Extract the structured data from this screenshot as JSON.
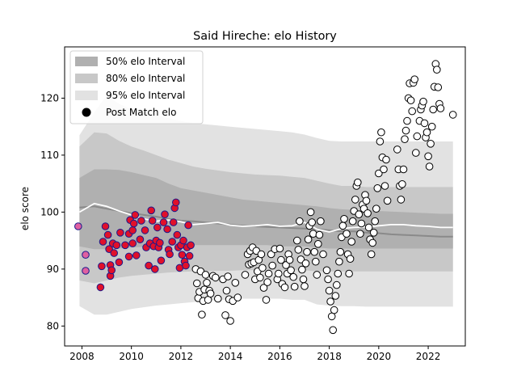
{
  "chart_data": {
    "type": "scatter",
    "title": "Said Hireche: elo History",
    "xlabel": "",
    "ylabel": "elo score",
    "xlim": [
      2007.3,
      2023.5
    ],
    "ylim": [
      76.5,
      129.0
    ],
    "xticks": [
      2008,
      2010,
      2012,
      2014,
      2016,
      2018,
      2020,
      2022
    ],
    "yticks": [
      80,
      90,
      100,
      110,
      120
    ],
    "grid": false,
    "legend_position": "upper-left",
    "legend": [
      {
        "label": "50% elo Interval",
        "color": "#b0b0b0",
        "kind": "patch"
      },
      {
        "label": "80% elo Interval",
        "color": "#c8c8c8",
        "kind": "patch"
      },
      {
        "label": "95% elo Interval",
        "color": "#e2e2e2",
        "kind": "patch"
      },
      {
        "label": "Post Match elo",
        "color": "#000000",
        "kind": "marker"
      }
    ],
    "bands": {
      "x": [
        2007.9,
        2008.5,
        2009.0,
        2009.5,
        2010.0,
        2010.5,
        2011.0,
        2011.5,
        2012.0,
        2012.5,
        2013.0,
        2013.5,
        2014.0,
        2014.5,
        2015.0,
        2015.5,
        2016.0,
        2016.5,
        2017.0,
        2017.5,
        2018.0,
        2018.5,
        2019.0,
        2019.5,
        2020.0,
        2020.5,
        2021.0,
        2021.5,
        2022.0,
        2022.5,
        2023.0
      ],
      "median": [
        100.8,
        101.0,
        100.6,
        100.2,
        99.8,
        99.5,
        99.2,
        98.8,
        98.5,
        98.4,
        98.2,
        98.0,
        97.8,
        97.6,
        97.5,
        97.4,
        97.3,
        97.2,
        97.1,
        97.0,
        96.8,
        96.6,
        96.6,
        96.4,
        96.3,
        96.1,
        96.0,
        95.9,
        95.8,
        95.7,
        95.7
      ],
      "line": [
        100.0,
        101.5,
        101.0,
        100.2,
        99.5,
        98.8,
        98.4,
        98.6,
        98.3,
        97.8,
        98.0,
        98.2,
        97.7,
        97.5,
        97.6,
        97.8,
        97.5,
        97.6,
        98.2,
        97.0,
        96.5,
        97.1,
        97.3,
        97.4,
        97.6,
        97.8,
        97.8,
        97.6,
        97.5,
        97.3,
        97.3
      ],
      "b50_lo": [
        94.0,
        93.5,
        93.5,
        93.6,
        93.8,
        93.9,
        94.0,
        94.1,
        94.2,
        94.2,
        94.2,
        94.2,
        94.2,
        94.2,
        94.2,
        94.2,
        94.0,
        94.0,
        94.0,
        93.8,
        93.6,
        93.6,
        93.6,
        93.6,
        93.6,
        93.6,
        93.6,
        93.6,
        93.6,
        93.6,
        93.6
      ],
      "b50_hi": [
        106.0,
        107.5,
        107.5,
        107.4,
        107.0,
        106.5,
        106.0,
        105.0,
        104.2,
        103.8,
        103.4,
        103.0,
        102.6,
        102.2,
        102.0,
        101.8,
        101.6,
        101.4,
        101.2,
        101.0,
        100.7,
        100.5,
        100.4,
        100.3,
        100.2,
        100.1,
        100.0,
        99.9,
        99.8,
        99.7,
        99.7
      ],
      "b80_lo": [
        88.0,
        87.5,
        88.0,
        88.5,
        88.8,
        89.0,
        89.2,
        89.4,
        89.5,
        89.6,
        89.6,
        89.7,
        89.7,
        89.8,
        89.8,
        89.8,
        89.8,
        89.8,
        89.8,
        89.6,
        89.6,
        89.6,
        89.6,
        89.6,
        89.6,
        89.6,
        89.6,
        89.6,
        89.6,
        89.6,
        89.6
      ],
      "b80_hi": [
        111.5,
        114.0,
        113.8,
        112.5,
        111.5,
        110.8,
        110.0,
        109.2,
        108.6,
        108.0,
        107.6,
        107.3,
        107.0,
        106.8,
        106.6,
        106.5,
        106.4,
        106.2,
        106.0,
        105.5,
        105.0,
        104.6,
        104.6,
        104.4,
        104.4,
        104.4,
        104.4,
        104.4,
        104.4,
        104.4,
        104.4
      ],
      "b95_lo": [
        83.5,
        82.0,
        82.0,
        82.5,
        83.0,
        83.3,
        83.6,
        83.8,
        84.0,
        84.2,
        84.4,
        84.6,
        84.6,
        84.8,
        84.8,
        84.8,
        84.8,
        84.6,
        84.6,
        83.8,
        83.6,
        83.5,
        83.5,
        83.4,
        83.4,
        83.4,
        83.4,
        83.4,
        83.4,
        83.4,
        83.4
      ],
      "b95_hi": [
        113.5,
        117.5,
        120.5,
        119.0,
        118.0,
        117.5,
        117.0,
        116.5,
        116.0,
        115.6,
        115.4,
        115.2,
        115.0,
        114.8,
        114.6,
        114.4,
        114.2,
        114.0,
        113.6,
        113.0,
        112.5,
        112.4,
        112.4,
        112.4,
        112.4,
        112.4,
        112.4,
        112.4,
        112.4,
        112.4,
        112.4
      ]
    },
    "series": [
      {
        "marker_face": "#e0102a",
        "marker_edge": "#1a1a8c",
        "points": [
          [
            2008.75,
            86.8
          ],
          [
            2008.8,
            90.5
          ],
          [
            2008.85,
            94.8
          ],
          [
            2008.95,
            97.5
          ],
          [
            2009.05,
            96.0
          ],
          [
            2009.1,
            93.5
          ],
          [
            2009.15,
            90.7
          ],
          [
            2009.15,
            88.8
          ],
          [
            2009.2,
            89.8
          ],
          [
            2009.25,
            94.5
          ],
          [
            2009.3,
            92.8
          ],
          [
            2009.4,
            94.2
          ],
          [
            2009.5,
            91.2
          ],
          [
            2009.55,
            96.4
          ],
          [
            2009.75,
            94.2
          ],
          [
            2009.9,
            92.2
          ],
          [
            2009.9,
            96.2
          ],
          [
            2009.95,
            98.6
          ],
          [
            2010.05,
            94.5
          ],
          [
            2010.05,
            96.8
          ],
          [
            2010.1,
            98.0
          ],
          [
            2010.15,
            99.5
          ],
          [
            2010.2,
            92.4
          ],
          [
            2010.35,
            95.2
          ],
          [
            2010.4,
            98.5
          ],
          [
            2010.55,
            96.8
          ],
          [
            2010.6,
            93.8
          ],
          [
            2010.7,
            90.6
          ],
          [
            2010.75,
            94.5
          ],
          [
            2010.8,
            100.3
          ],
          [
            2010.85,
            98.5
          ],
          [
            2010.9,
            94.0
          ],
          [
            2010.95,
            90.0
          ],
          [
            2011.0,
            95.0
          ],
          [
            2011.05,
            97.3
          ],
          [
            2011.1,
            93.8
          ],
          [
            2011.15,
            94.6
          ],
          [
            2011.2,
            91.5
          ],
          [
            2011.3,
            98.2
          ],
          [
            2011.35,
            99.6
          ],
          [
            2011.45,
            97.0
          ],
          [
            2011.5,
            93.4
          ],
          [
            2011.55,
            92.6
          ],
          [
            2011.65,
            94.8
          ],
          [
            2011.7,
            98.2
          ],
          [
            2011.75,
            100.7
          ],
          [
            2011.8,
            101.7
          ],
          [
            2011.85,
            96.0
          ],
          [
            2011.9,
            93.8
          ],
          [
            2011.95,
            90.2
          ],
          [
            2012.0,
            94.2
          ],
          [
            2012.05,
            92.5
          ],
          [
            2012.1,
            95.0
          ],
          [
            2012.15,
            91.3
          ],
          [
            2012.2,
            90.6
          ],
          [
            2012.25,
            93.8
          ],
          [
            2012.3,
            97.7
          ],
          [
            2012.35,
            92.3
          ],
          [
            2012.4,
            94.2
          ]
        ]
      },
      {
        "marker_face": "#e060a0",
        "marker_edge": "#1a1a8c",
        "points": [
          [
            2007.85,
            97.5
          ],
          [
            2008.15,
            92.5
          ],
          [
            2008.15,
            89.7
          ]
        ]
      },
      {
        "marker_face": "#ffffff",
        "marker_edge": "#000000",
        "points": [
          [
            2012.6,
            90.0
          ],
          [
            2012.65,
            87.5
          ],
          [
            2012.7,
            84.9
          ],
          [
            2012.75,
            86.0
          ],
          [
            2012.8,
            89.6
          ],
          [
            2012.85,
            82.0
          ],
          [
            2012.9,
            84.4
          ],
          [
            2012.95,
            86.4
          ],
          [
            2013.0,
            89.0
          ],
          [
            2013.05,
            87.6
          ],
          [
            2013.1,
            84.6
          ],
          [
            2013.15,
            86.2
          ],
          [
            2013.2,
            85.7
          ],
          [
            2013.3,
            88.8
          ],
          [
            2013.4,
            88.5
          ],
          [
            2013.5,
            84.8
          ],
          [
            2013.7,
            88.2
          ],
          [
            2013.8,
            81.9
          ],
          [
            2013.85,
            86.2
          ],
          [
            2013.9,
            88.7
          ],
          [
            2013.95,
            84.7
          ],
          [
            2014.0,
            80.9
          ],
          [
            2014.1,
            84.4
          ],
          [
            2014.2,
            87.6
          ],
          [
            2014.3,
            85.0
          ],
          [
            2014.6,
            89.0
          ],
          [
            2014.7,
            92.6
          ],
          [
            2014.75,
            90.8
          ],
          [
            2014.8,
            93.2
          ],
          [
            2014.85,
            91.0
          ],
          [
            2014.9,
            93.8
          ],
          [
            2014.95,
            91.2
          ],
          [
            2015.0,
            88.2
          ],
          [
            2015.05,
            93.2
          ],
          [
            2015.1,
            89.6
          ],
          [
            2015.15,
            91.6
          ],
          [
            2015.2,
            88.5
          ],
          [
            2015.25,
            92.6
          ],
          [
            2015.3,
            90.2
          ],
          [
            2015.35,
            86.7
          ],
          [
            2015.45,
            84.6
          ],
          [
            2015.5,
            87.7
          ],
          [
            2015.55,
            89.2
          ],
          [
            2015.65,
            92.6
          ],
          [
            2015.7,
            90.6
          ],
          [
            2015.8,
            93.5
          ],
          [
            2015.9,
            88.2
          ],
          [
            2015.95,
            89.2
          ],
          [
            2016.0,
            93.6
          ],
          [
            2016.05,
            91.6
          ],
          [
            2016.1,
            87.4
          ],
          [
            2016.2,
            86.8
          ],
          [
            2016.25,
            90.7
          ],
          [
            2016.3,
            89.2
          ],
          [
            2016.35,
            92.6
          ],
          [
            2016.4,
            91.6
          ],
          [
            2016.45,
            89.8
          ],
          [
            2016.55,
            88.6
          ],
          [
            2016.6,
            86.9
          ],
          [
            2016.7,
            95.0
          ],
          [
            2016.75,
            93.4
          ],
          [
            2016.8,
            98.4
          ],
          [
            2016.85,
            91.7
          ],
          [
            2016.9,
            89.9
          ],
          [
            2016.95,
            88.2
          ],
          [
            2017.0,
            87.0
          ],
          [
            2017.05,
            91.0
          ],
          [
            2017.1,
            93.0
          ],
          [
            2017.15,
            95.2
          ],
          [
            2017.2,
            97.6
          ],
          [
            2017.25,
            100.0
          ],
          [
            2017.3,
            98.2
          ],
          [
            2017.35,
            96.2
          ],
          [
            2017.4,
            93.0
          ],
          [
            2017.45,
            91.3
          ],
          [
            2017.5,
            89.0
          ],
          [
            2017.55,
            94.4
          ],
          [
            2017.6,
            96.0
          ],
          [
            2017.65,
            98.4
          ],
          [
            2017.75,
            92.6
          ],
          [
            2017.9,
            89.8
          ],
          [
            2017.95,
            88.2
          ],
          [
            2018.0,
            86.2
          ],
          [
            2018.05,
            84.3
          ],
          [
            2018.1,
            81.7
          ],
          [
            2018.15,
            79.3
          ],
          [
            2018.2,
            82.8
          ],
          [
            2018.25,
            85.3
          ],
          [
            2018.3,
            87.2
          ],
          [
            2018.35,
            89.2
          ],
          [
            2018.4,
            91.3
          ],
          [
            2018.45,
            93.0
          ],
          [
            2018.5,
            95.6
          ],
          [
            2018.55,
            97.6
          ],
          [
            2018.6,
            98.8
          ],
          [
            2018.7,
            96.2
          ],
          [
            2018.75,
            92.6
          ],
          [
            2018.8,
            89.2
          ],
          [
            2018.85,
            91.8
          ],
          [
            2018.9,
            94.8
          ],
          [
            2018.95,
            98.4
          ],
          [
            2019.0,
            100.2
          ],
          [
            2019.05,
            102.2
          ],
          [
            2019.1,
            104.6
          ],
          [
            2019.15,
            105.2
          ],
          [
            2019.2,
            99.6
          ],
          [
            2019.25,
            96.2
          ],
          [
            2019.3,
            98.0
          ],
          [
            2019.35,
            101.3
          ],
          [
            2019.4,
            100.6
          ],
          [
            2019.45,
            103.0
          ],
          [
            2019.5,
            102.0
          ],
          [
            2019.55,
            99.8
          ],
          [
            2019.6,
            97.3
          ],
          [
            2019.65,
            95.2
          ],
          [
            2019.7,
            92.6
          ],
          [
            2019.75,
            94.6
          ],
          [
            2019.8,
            96.4
          ],
          [
            2019.85,
            98.4
          ],
          [
            2019.9,
            100.6
          ],
          [
            2019.95,
            104.2
          ],
          [
            2020.0,
            106.8
          ],
          [
            2020.05,
            112.4
          ],
          [
            2020.1,
            114.0
          ],
          [
            2020.15,
            109.6
          ],
          [
            2020.2,
            107.5
          ],
          [
            2020.25,
            104.6
          ],
          [
            2020.3,
            109.2
          ],
          [
            2020.35,
            102.0
          ],
          [
            2020.75,
            111.0
          ],
          [
            2020.8,
            107.5
          ],
          [
            2020.85,
            104.6
          ],
          [
            2020.9,
            102.2
          ],
          [
            2020.95,
            104.9
          ],
          [
            2021.0,
            107.5
          ],
          [
            2021.05,
            112.8
          ],
          [
            2021.1,
            114.3
          ],
          [
            2021.15,
            116.0
          ],
          [
            2021.2,
            120.0
          ],
          [
            2021.25,
            122.6
          ],
          [
            2021.3,
            119.6
          ],
          [
            2021.35,
            117.7
          ],
          [
            2021.4,
            122.7
          ],
          [
            2021.45,
            123.3
          ],
          [
            2021.5,
            110.4
          ],
          [
            2021.55,
            113.3
          ],
          [
            2021.65,
            116.0
          ],
          [
            2021.7,
            118.0
          ],
          [
            2021.75,
            118.7
          ],
          [
            2021.8,
            119.4
          ],
          [
            2021.85,
            115.6
          ],
          [
            2021.9,
            113.1
          ],
          [
            2021.95,
            114.0
          ],
          [
            2022.0,
            109.8
          ],
          [
            2022.05,
            108.0
          ],
          [
            2022.1,
            112.0
          ],
          [
            2022.15,
            115.0
          ],
          [
            2022.2,
            118.0
          ],
          [
            2022.25,
            122.0
          ],
          [
            2022.3,
            126.0
          ],
          [
            2022.35,
            125.0
          ],
          [
            2022.4,
            121.9
          ],
          [
            2022.45,
            119.0
          ],
          [
            2022.5,
            118.2
          ],
          [
            2023.0,
            117.1
          ]
        ]
      }
    ]
  }
}
